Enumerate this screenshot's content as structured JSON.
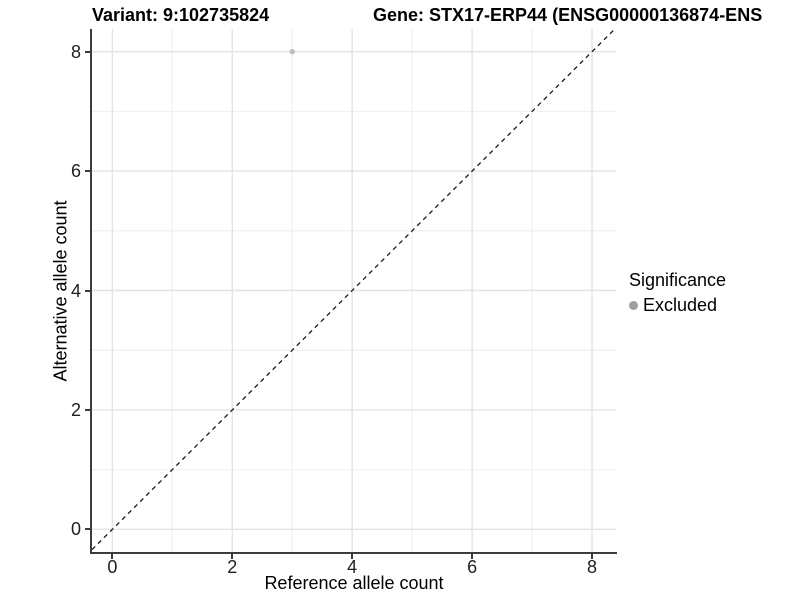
{
  "title": {
    "variant": "Variant: 9:102735824",
    "gene": "Gene: STX17-ERP44 (ENSG00000136874-ENS"
  },
  "axes": {
    "x": {
      "label": "Reference allele count"
    },
    "y": {
      "label": "Alternative allele count"
    }
  },
  "legend": {
    "title": "Significance",
    "items": [
      {
        "label": "Excluded",
        "color": "#9e9e9e"
      }
    ]
  },
  "colors": {
    "background": "#ffffff",
    "grid_major": "#e3e3e3",
    "grid_minor": "#f1f1f1",
    "axis_line": "#3c3c3c",
    "tick_label": "#1f1f1f",
    "reference_line": "#1a1a1a",
    "point": "#c0c0c0",
    "legend_dot": "#9e9e9e"
  },
  "chart_data": {
    "type": "scatter",
    "title": "Variant: 9:102735824   Gene: STX17-ERP44 (ENSG00000136874-ENS",
    "xlabel": "Reference allele count",
    "ylabel": "Alternative allele count",
    "x_ticks": [
      0,
      2,
      4,
      6,
      8
    ],
    "y_ticks": [
      0,
      2,
      4,
      6,
      8
    ],
    "xlim": [
      -0.34,
      8.4
    ],
    "ylim": [
      -0.38,
      8.38
    ],
    "grid": "on",
    "legend_position": "right",
    "legend_title": "Significance",
    "series": [
      {
        "name": "Excluded",
        "color": "#c0c0c0",
        "points": [
          [
            3,
            8
          ]
        ]
      }
    ],
    "reference_line": {
      "style": "dashed",
      "slope": 1,
      "intercept": 0
    }
  }
}
